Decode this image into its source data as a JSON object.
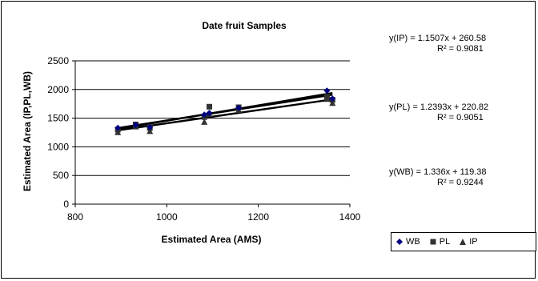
{
  "chart_data": {
    "type": "scatter",
    "title": "Date fruit Samples",
    "xlabel": "Estimated Area (AMS)",
    "ylabel": "Estimated Area (IP,PL,WB)",
    "xlim": [
      800,
      1400
    ],
    "ylim": [
      0,
      2500
    ],
    "xticks": [
      800,
      1000,
      1200,
      1400
    ],
    "yticks": [
      0,
      500,
      1000,
      1500,
      2000,
      2500
    ],
    "grid": "horizontal",
    "legend_position": "bottom-right",
    "series": [
      {
        "name": "WB",
        "marker": "diamond",
        "color": "#000080",
        "x": [
          893,
          932,
          963,
          1082,
          1093,
          1157,
          1350,
          1362
        ],
        "y": [
          1330,
          1380,
          1340,
          1560,
          1590,
          1680,
          1980,
          1840
        ],
        "trendline": {
          "slope": 1.336,
          "intercept": 119.38
        }
      },
      {
        "name": "PL",
        "marker": "square",
        "color": "#333333",
        "x": [
          893,
          932,
          963,
          1082,
          1093,
          1157,
          1350,
          1362
        ],
        "y": [
          1300,
          1390,
          1330,
          1520,
          1700,
          1690,
          1870,
          1820
        ],
        "trendline": {
          "slope": 1.2393,
          "intercept": 220.82
        }
      },
      {
        "name": "IP",
        "marker": "triangle",
        "color": "#333333",
        "x": [
          893,
          932,
          963,
          1082,
          1093,
          1157,
          1350,
          1362
        ],
        "y": [
          1260,
          1360,
          1280,
          1440,
          1580,
          1650,
          1840,
          1770
        ],
        "trendline": {
          "slope": 1.1507,
          "intercept": 260.58
        }
      }
    ],
    "annotations": [
      {
        "equation": "y(IP) = 1.1507x + 260.58",
        "r2": "R² = 0.9081"
      },
      {
        "equation": "y(PL) = 1.2393x + 220.82",
        "r2": "R² = 0.9051"
      },
      {
        "equation": "y(WB) = 1.336x + 119.38",
        "r2": "R² = 0.9244"
      }
    ]
  }
}
